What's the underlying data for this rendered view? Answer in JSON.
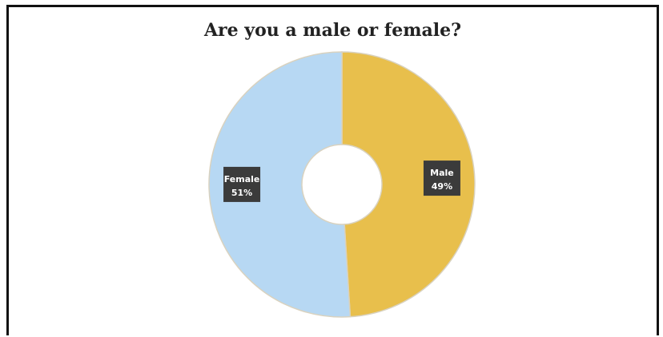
{
  "chart_data": {
    "type": "pie",
    "title": "Are you a male or female?",
    "donut": true,
    "slices": [
      {
        "label": "Male",
        "value": 49,
        "value_label": "49%",
        "color": "#e8bf4c"
      },
      {
        "label": "Female",
        "value": 51,
        "value_label": "51%",
        "color": "#b7d8f3"
      }
    ],
    "label_box_color": "#3b3b3b",
    "label_text_color": "#ffffff"
  }
}
